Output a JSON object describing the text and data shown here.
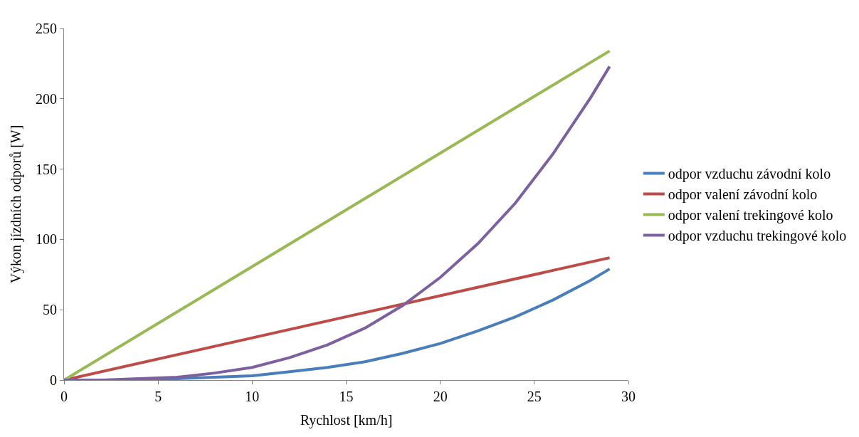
{
  "chart_data": {
    "type": "line",
    "xlabel": "Rychlost [km/h]",
    "ylabel": "Výkon jízdních odporů [W]",
    "xlim": [
      0,
      30
    ],
    "xticks": [
      0,
      5,
      10,
      15,
      20,
      25,
      30
    ],
    "ylim": [
      0,
      250
    ],
    "yticks": [
      0,
      50,
      100,
      150,
      200,
      250
    ],
    "legend": "right",
    "marker": "none",
    "line_style": "solid",
    "series": [
      {
        "name": "odpor vzduchu závodní kolo",
        "color": "#4a7ebb",
        "x": [
          0,
          2,
          4,
          6,
          8,
          10,
          12,
          14,
          16,
          18,
          20,
          22,
          24,
          26,
          28,
          29
        ],
        "values": [
          0,
          0,
          0,
          1,
          2,
          3,
          6,
          9,
          13,
          19,
          26,
          35,
          45,
          57,
          71,
          79
        ]
      },
      {
        "name": "odpor valení závodní kolo",
        "color": "#be4b48",
        "x": [
          0,
          29
        ],
        "values": [
          0,
          87
        ]
      },
      {
        "name": "odpor valení trekingové kolo",
        "color": "#98b954",
        "x": [
          0,
          29
        ],
        "values": [
          0,
          234
        ]
      },
      {
        "name": "odpor vzduchu trekingové kolo",
        "color": "#7d60a0",
        "x": [
          0,
          2,
          4,
          6,
          8,
          10,
          12,
          14,
          16,
          18,
          20,
          22,
          24,
          26,
          28,
          29
        ],
        "values": [
          0,
          0,
          1,
          2,
          5,
          9,
          16,
          25,
          37,
          53,
          73,
          97,
          126,
          161,
          201,
          223
        ]
      }
    ]
  }
}
